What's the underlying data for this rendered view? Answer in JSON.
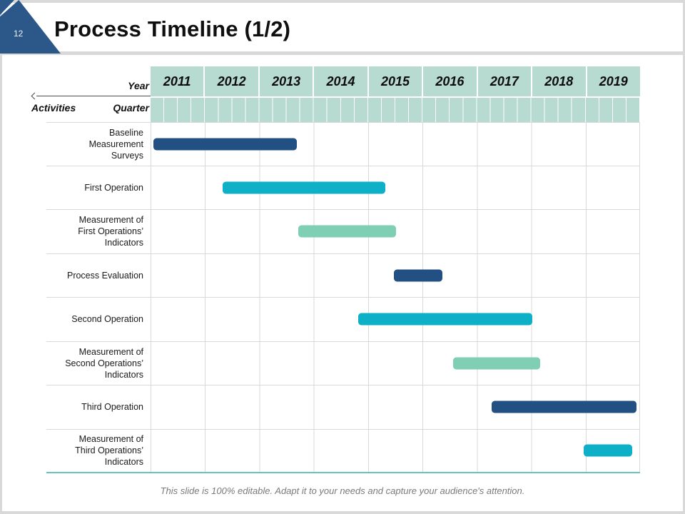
{
  "slide": {
    "page_number": "12",
    "title": "Process Timeline (1/2)",
    "footer": "This slide is 100% editable. Adapt it to your needs and capture your audience's attention."
  },
  "gantt": {
    "axis": {
      "year_label": "Year",
      "activities_label": "Activities",
      "quarter_label": "Quarter"
    },
    "years": [
      "2011",
      "2012",
      "2013",
      "2014",
      "2015",
      "2016",
      "2017",
      "2018",
      "2019"
    ],
    "quarters_per_year": 4,
    "total_quarters": 36,
    "colors": {
      "navy": "#235082",
      "cyan": "#0db0c7",
      "green": "#7ecfb4",
      "header_bg": "#b7dbd0",
      "grid_line": "#d9d9d9",
      "bottom_line": "#66c4bc",
      "accent_triangle": "#2b5789"
    },
    "rows": [
      {
        "label": "Baseline Measurement Surveys",
        "bar": {
          "color": "navy",
          "start_q": 0.2,
          "end_q": 10.8
        }
      },
      {
        "label": "First Operation",
        "bar": {
          "color": "cyan",
          "start_q": 5.3,
          "end_q": 17.3
        }
      },
      {
        "label": "Measurement of First Operations’ Indicators",
        "bar": {
          "color": "green",
          "start_q": 10.9,
          "end_q": 18.1
        }
      },
      {
        "label": "Process Evaluation",
        "bar": {
          "color": "navy",
          "start_q": 17.9,
          "end_q": 21.5
        }
      },
      {
        "label": "Second Operation",
        "bar": {
          "color": "cyan",
          "start_q": 15.3,
          "end_q": 28.1
        }
      },
      {
        "label": "Measurement of Second Operations’ Indicators",
        "bar": {
          "color": "green",
          "start_q": 22.3,
          "end_q": 28.7
        }
      },
      {
        "label": "Third Operation",
        "bar": {
          "color": "navy",
          "start_q": 25.1,
          "end_q": 35.8
        }
      },
      {
        "label": "Measurement of Third Operations’ Indicators",
        "bar": {
          "color": "cyan",
          "start_q": 31.9,
          "end_q": 35.5
        }
      }
    ]
  },
  "chart_data": {
    "type": "bar",
    "subtype": "gantt-timeline",
    "title": "Process Timeline (1/2)",
    "xlabel": "Year",
    "ylabel": "Activities",
    "x_axis": {
      "ticks": [
        "2011",
        "2012",
        "2013",
        "2014",
        "2015",
        "2016",
        "2017",
        "2018",
        "2019"
      ],
      "minor_unit": "Quarter",
      "xlim": [
        2011,
        2020
      ]
    },
    "grid": "vertical year lines on",
    "legend_position": "none",
    "categories": [
      "Baseline Measurement Surveys",
      "First Operation",
      "Measurement of First Operations’ Indicators",
      "Process Evaluation",
      "Second Operation",
      "Measurement of Second Operations’ Indicators",
      "Third Operation",
      "Measurement of Third Operations’ Indicators"
    ],
    "series": [
      {
        "name": "Activity duration",
        "values": [
          {
            "activity": "Baseline Measurement Surveys",
            "start": 2011.05,
            "end": 2013.7,
            "color": "#235082"
          },
          {
            "activity": "First Operation",
            "start": 2012.33,
            "end": 2015.33,
            "color": "#0db0c7"
          },
          {
            "activity": "Measurement of First Operations’ Indicators",
            "start": 2013.73,
            "end": 2015.53,
            "color": "#7ecfb4"
          },
          {
            "activity": "Process Evaluation",
            "start": 2015.48,
            "end": 2016.38,
            "color": "#235082"
          },
          {
            "activity": "Second Operation",
            "start": 2014.83,
            "end": 2018.03,
            "color": "#0db0c7"
          },
          {
            "activity": "Measurement of Second Operations’ Indicators",
            "start": 2016.58,
            "end": 2018.18,
            "color": "#7ecfb4"
          },
          {
            "activity": "Third Operation",
            "start": 2017.28,
            "end": 2019.95,
            "color": "#235082"
          },
          {
            "activity": "Measurement of Third Operations’ Indicators",
            "start": 2018.98,
            "end": 2019.88,
            "color": "#0db0c7"
          }
        ]
      }
    ]
  }
}
